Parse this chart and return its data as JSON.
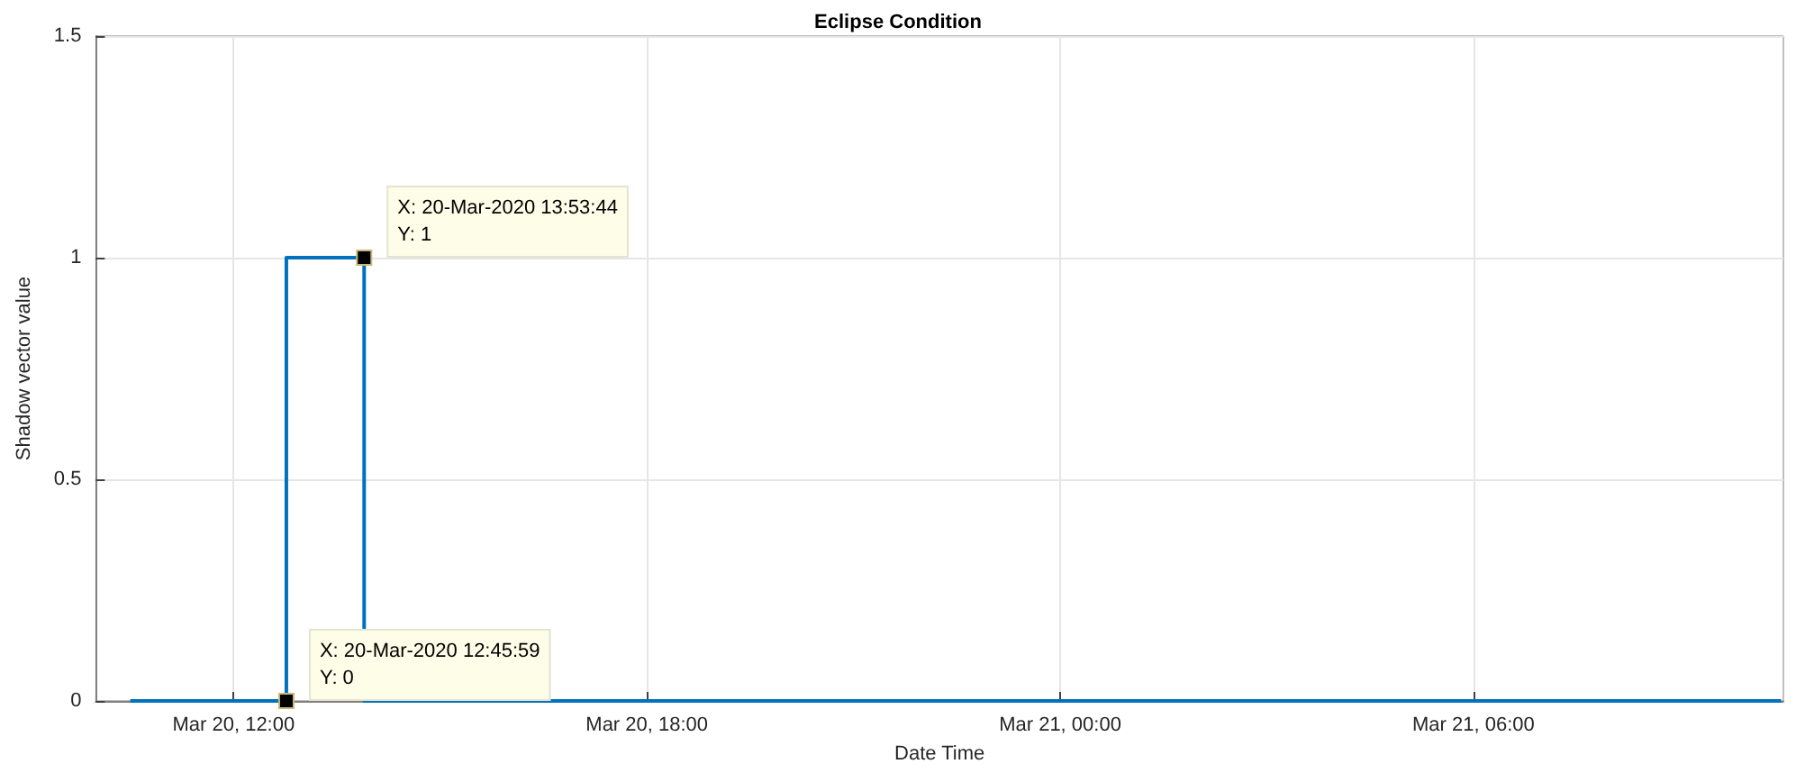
{
  "chart_data": {
    "type": "step",
    "title": "Eclipse Condition",
    "xlabel": "Date Time",
    "ylabel": "Shadow vector value",
    "x": [
      "2020-03-20T10:30",
      "2020-03-20T12:45:59",
      "2020-03-20T13:53:44",
      "2020-03-21T10:28"
    ],
    "series": [
      {
        "color": "#0072bd",
        "values": [
          0,
          0,
          1,
          0
        ]
      }
    ],
    "xlim": [
      "2020-03-20T10:00",
      "2020-03-21T10:30"
    ],
    "xticks": [
      {
        "value": "2020-03-20T12:00",
        "label": "Mar 20, 12:00"
      },
      {
        "value": "2020-03-20T18:00",
        "label": "Mar 20, 18:00"
      },
      {
        "value": "2020-03-21T00:00",
        "label": "Mar 21, 00:00"
      },
      {
        "value": "2020-03-21T06:00",
        "label": "Mar 21, 06:00"
      }
    ],
    "ylim": [
      0,
      1.5
    ],
    "yticks": [
      0,
      0.5,
      1,
      1.5
    ],
    "grid": true,
    "annotations": [
      {
        "text": "X: 20-Mar-2020 13:53:44\nY: 1",
        "x": "2020-03-20T13:53:44",
        "y": 1
      },
      {
        "text": "X: 20-Mar-2020 12:45:59\nY: 0",
        "x": "2020-03-20T12:45:59",
        "y": 0
      }
    ]
  }
}
